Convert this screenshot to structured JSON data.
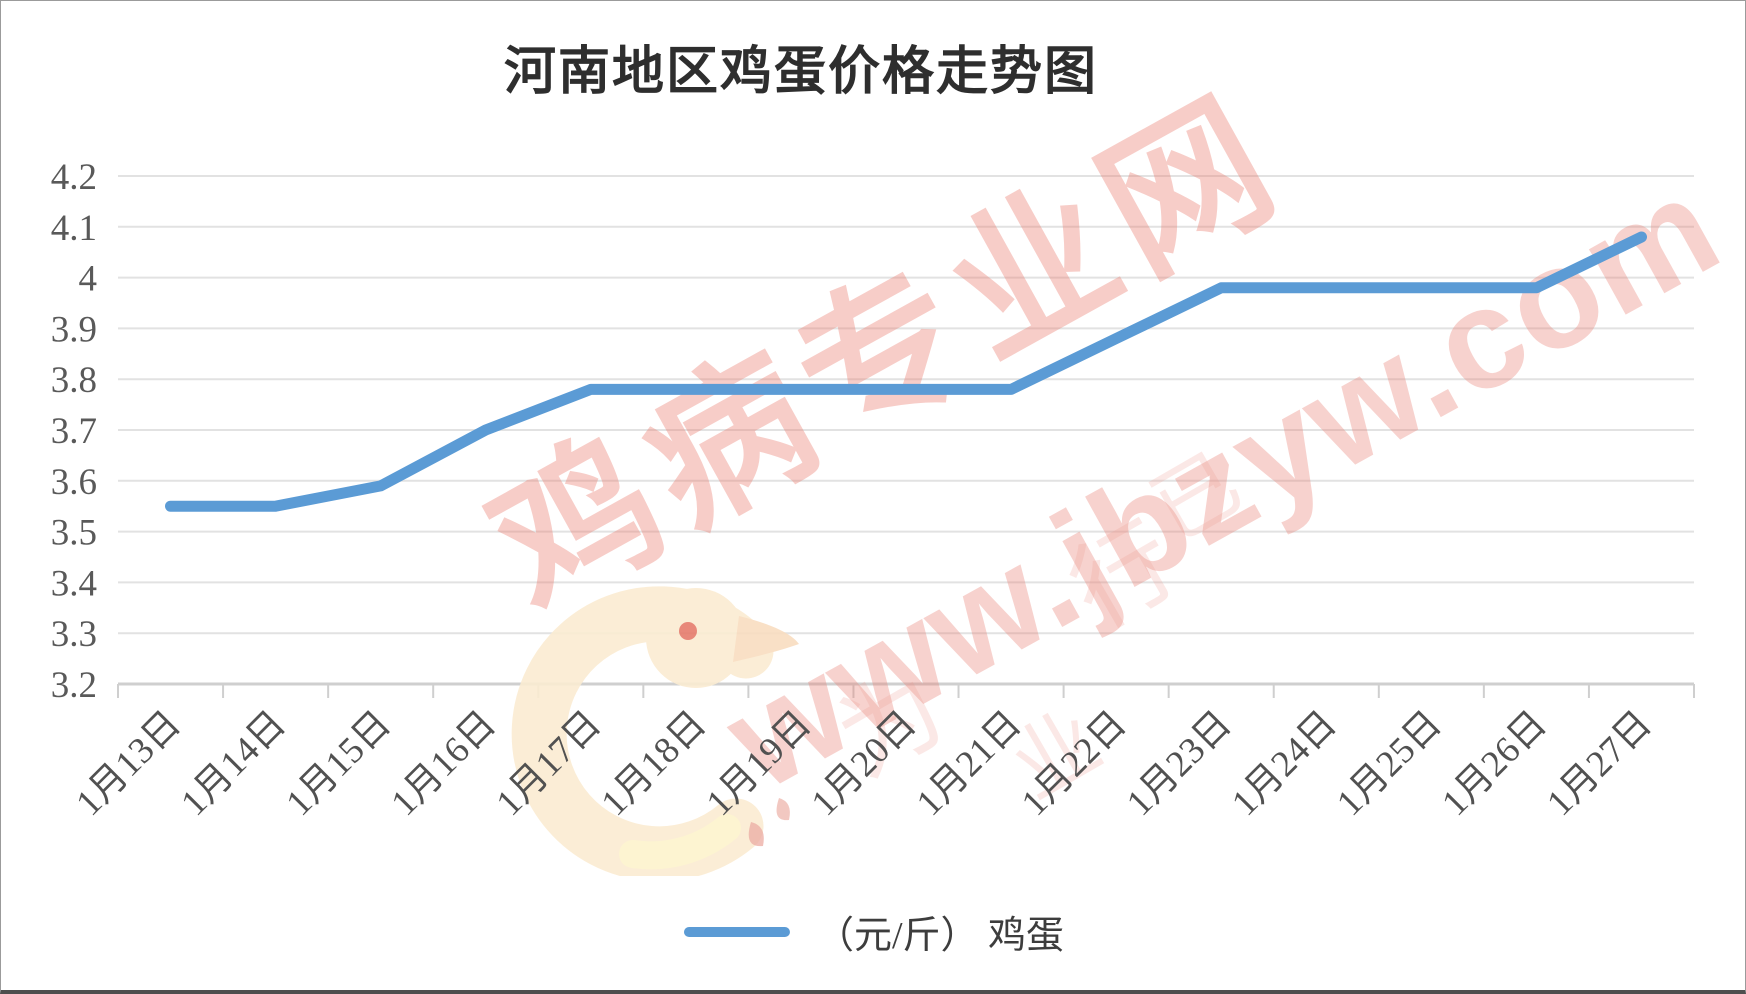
{
  "window": {
    "background": "#ffffff",
    "border_color": "#9b9b9b"
  },
  "chart_data": {
    "type": "line",
    "title": "河南地区鸡蛋价格走势图",
    "categories": [
      "1月13日",
      "1月14日",
      "1月15日",
      "1月16日",
      "1月17日",
      "1月18日",
      "1月19日",
      "1月20日",
      "1月21日",
      "1月22日",
      "1月23日",
      "1月24日",
      "1月25日",
      "1月26日",
      "1月27日"
    ],
    "series": [
      {
        "name": "（元/斤） 鸡蛋",
        "values": [
          3.55,
          3.55,
          3.59,
          3.7,
          3.78,
          3.78,
          3.78,
          3.78,
          3.78,
          3.88,
          3.98,
          3.98,
          3.98,
          3.98,
          4.08
        ],
        "color": "#5b9bd5"
      }
    ],
    "xlabel": "",
    "ylabel": "",
    "ylim": [
      3.2,
      4.2
    ],
    "ytick_step": 0.1,
    "yticks": [
      "4.2",
      "4.1",
      "4",
      "3.9",
      "3.8",
      "3.7",
      "3.6",
      "3.5",
      "3.4",
      "3.3",
      "3.2"
    ],
    "grid": "horizontal",
    "legend_position": "bottom"
  },
  "legend": {
    "label": "（元/斤） 鸡蛋",
    "swatch_color": "#5b9bd5"
  },
  "watermark": {
    "site_name": "鸡病专业网",
    "site_url": "www.jbzyw.com",
    "faint_chars": [
      "为",
      "行",
      "业",
      "已"
    ],
    "text_color": "#ea8276"
  },
  "colors": {
    "series_line": "#5b9bd5",
    "gridline": "#e2e2e2",
    "axis_line": "#cfcfcf",
    "tick_label": "#595959",
    "x_label": "#515151",
    "title_text": "#2e2e2e",
    "bird_body": "#fbecd2",
    "bird_accent": "#fdf3cd",
    "bird_beak": "#f9ddc0",
    "bird_eye": "#e2685a",
    "bird_drops": "#eba89e"
  }
}
